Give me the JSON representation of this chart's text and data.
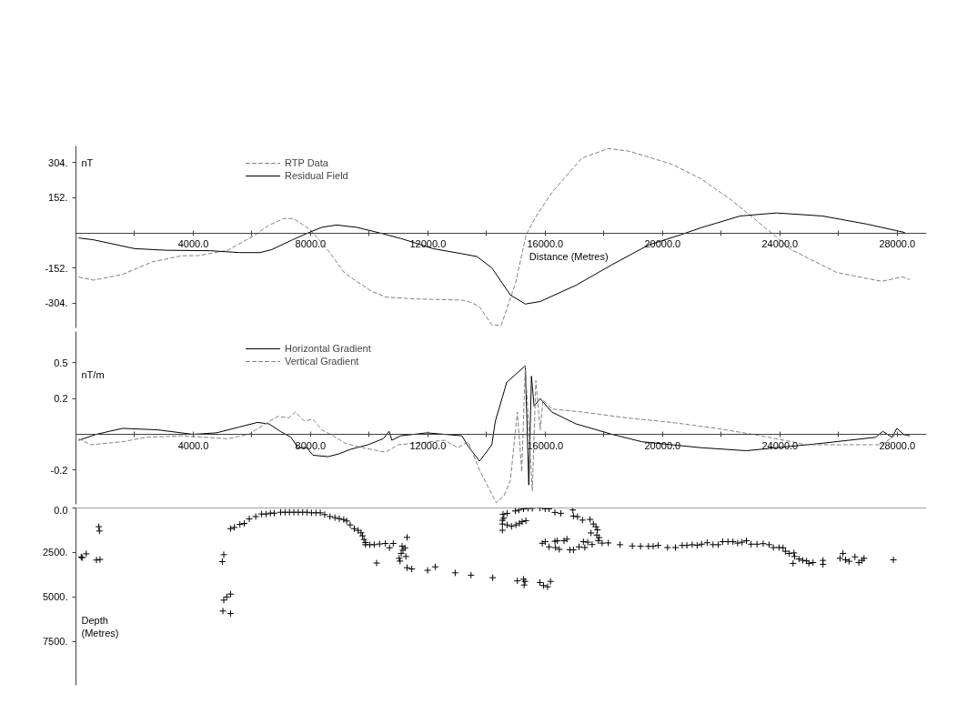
{
  "chart_data": [
    {
      "type": "line",
      "xlabel": "Distance (Metres)",
      "ylabel": "nT",
      "legend": "top",
      "xlim": [
        0,
        29000
      ],
      "ylim": [
        -410,
        375
      ],
      "xticks": [
        {
          "value": 2000,
          "label": null
        },
        {
          "value": 4000,
          "label": "4000.0"
        },
        {
          "value": 6000,
          "label": null
        },
        {
          "value": 8000,
          "label": "8000.0"
        },
        {
          "value": 10000,
          "label": null
        },
        {
          "value": 12000,
          "label": "12000.0"
        },
        {
          "value": 14000,
          "label": null
        },
        {
          "value": 16000,
          "label": "16000.0"
        },
        {
          "value": 18000,
          "label": null
        },
        {
          "value": 20000,
          "label": "20000.0"
        },
        {
          "value": 22000,
          "label": null
        },
        {
          "value": 24000,
          "label": "24000.0"
        },
        {
          "value": 26000,
          "label": null
        },
        {
          "value": 28000,
          "label": "28000.0"
        }
      ],
      "yticks": [
        {
          "value": 304,
          "label": "304."
        },
        {
          "value": 152,
          "label": "152."
        },
        {
          "value": -152,
          "label": "-152."
        },
        {
          "value": -304,
          "label": "-304."
        }
      ],
      "series": [
        {
          "name": "RTP Data",
          "color": "#808080",
          "line_style": "dashed",
          "x": [
            100,
            600,
            1590,
            2600,
            3590,
            4190,
            5180,
            6080,
            6580,
            7080,
            7420,
            7990,
            8590,
            9180,
            10080,
            10570,
            11570,
            13160,
            13470,
            13760,
            14180,
            14500,
            14990,
            15350,
            15680,
            16220,
            17250,
            18160,
            18880,
            20320,
            21330,
            22350,
            22980,
            23790,
            24380,
            25940,
            27470,
            28180,
            28420
          ],
          "values": [
            -191,
            -204,
            -179,
            -125,
            -99,
            -98,
            -75,
            -11,
            33,
            62,
            62,
            14,
            -75,
            -176,
            -252,
            -277,
            -285,
            -290,
            -300,
            -319,
            -397,
            -399,
            -216,
            -8,
            70,
            173,
            323,
            364,
            352,
            296,
            232,
            141,
            76,
            -8,
            -72,
            -171,
            -209,
            -190,
            -201
          ]
        },
        {
          "name": "Residual Field",
          "color": "#000000",
          "line_style": "solid",
          "x": [
            100,
            600,
            2000,
            3090,
            4580,
            5590,
            6280,
            6680,
            7380,
            7990,
            8380,
            8880,
            9570,
            10380,
            11070,
            12180,
            13160,
            13670,
            14180,
            14810,
            15320,
            15830,
            17050,
            18280,
            19510,
            20620,
            21330,
            22650,
            23880,
            25440,
            26960,
            28250
          ],
          "values": [
            -22,
            -30,
            -68,
            -75,
            -77,
            -85,
            -85,
            -72,
            -30,
            4,
            24,
            34,
            24,
            -1,
            -24,
            -68,
            -90,
            -102,
            -151,
            -268,
            -307,
            -296,
            -226,
            -137,
            -53,
            -8,
            23,
            73,
            86,
            73,
            38,
            2
          ]
        }
      ]
    },
    {
      "type": "line",
      "ylabel": "nT/m",
      "legend": "top",
      "xlim": [
        0,
        29000
      ],
      "ylim": [
        -0.47,
        0.69
      ],
      "xticks": [
        {
          "value": 2000,
          "label": null
        },
        {
          "value": 4000,
          "label": "4000.0"
        },
        {
          "value": 6000,
          "label": null
        },
        {
          "value": 8000,
          "label": "8000.0"
        },
        {
          "value": 10000,
          "label": null
        },
        {
          "value": 12000,
          "label": "12000.0"
        },
        {
          "value": 14000,
          "label": null
        },
        {
          "value": 16000,
          "label": "16000.0"
        },
        {
          "value": 18000,
          "label": null
        },
        {
          "value": 20000,
          "label": "20000.0"
        },
        {
          "value": 22000,
          "label": null
        },
        {
          "value": 24000,
          "label": "24000.0"
        },
        {
          "value": 26000,
          "label": null
        },
        {
          "value": 28000,
          "label": "28000.0"
        }
      ],
      "yticks": [
        {
          "value": 0.48,
          "label": "0.5"
        },
        {
          "value": 0.24,
          "label": "0.2"
        },
        {
          "value": -0.24,
          "label": "-0.2"
        }
      ],
      "series": [
        {
          "name": "Horizontal Gradient",
          "color": "#000000",
          "line_style": "solid",
          "x": [
            100,
            690,
            1590,
            2790,
            3990,
            4790,
            5590,
            6190,
            6580,
            6970,
            7330,
            7570,
            7870,
            8080,
            8590,
            8980,
            9370,
            9960,
            10470,
            10680,
            10770,
            11070,
            11970,
            12570,
            13160,
            13370,
            13760,
            14180,
            14300,
            14690,
            15320,
            15440,
            15530,
            15620,
            15830,
            16220,
            17050,
            18280,
            19300,
            21330,
            22860,
            23880,
            25440,
            27260,
            27510,
            27820,
            27990,
            28220,
            28420
          ],
          "values": [
            -0.04,
            0.0,
            0.04,
            0.03,
            0.0,
            0.01,
            0.05,
            0.08,
            0.07,
            0.02,
            -0.02,
            -0.09,
            -0.09,
            -0.14,
            -0.15,
            -0.13,
            -0.1,
            -0.07,
            -0.03,
            0.02,
            -0.04,
            -0.01,
            0.01,
            0.0,
            -0.01,
            -0.08,
            -0.18,
            -0.07,
            0.09,
            0.35,
            0.46,
            -0.34,
            0.39,
            0.19,
            0.24,
            0.15,
            0.07,
            0.0,
            -0.05,
            -0.09,
            -0.11,
            -0.09,
            -0.06,
            -0.02,
            0.02,
            -0.02,
            0.04,
            0.0,
            -0.01
          ]
        },
        {
          "name": "Vertical Gradient",
          "color": "#808080",
          "line_style": "dashed",
          "x": [
            100,
            500,
            1590,
            2390,
            3590,
            5180,
            5890,
            6370,
            6880,
            7240,
            7480,
            7780,
            8080,
            8380,
            8770,
            9180,
            9780,
            10560,
            10980,
            11580,
            12570,
            13020,
            13370,
            13760,
            14330,
            14600,
            14810,
            15050,
            15200,
            15320,
            15560,
            15680,
            15830,
            15920,
            16220,
            17250,
            18790,
            20320,
            21840,
            23370,
            24910,
            27470,
            27980,
            28380
          ],
          "values": [
            -0.03,
            -0.07,
            -0.05,
            -0.02,
            -0.01,
            -0.03,
            0.0,
            0.06,
            0.12,
            0.11,
            0.15,
            0.09,
            0.1,
            0.03,
            -0.01,
            -0.06,
            -0.09,
            -0.12,
            -0.07,
            -0.06,
            -0.04,
            -0.09,
            -0.05,
            -0.24,
            -0.46,
            -0.41,
            -0.31,
            0.15,
            -0.25,
            0.46,
            -0.38,
            0.36,
            0.03,
            0.23,
            0.17,
            0.15,
            0.11,
            0.08,
            0.04,
            -0.01,
            -0.07,
            -0.07,
            0.0,
            -0.01
          ]
        }
      ]
    },
    {
      "type": "scatter",
      "ylabel": "Depth (Metres)",
      "marker": "cross",
      "tick_labels": "y",
      "xlim": [
        0,
        29000
      ],
      "ylim": [
        9950,
        0
      ],
      "yticks": [
        {
          "value": 0,
          "label": "0.0"
        },
        {
          "value": 2500,
          "label": "2500."
        },
        {
          "value": 5000,
          "label": "5000."
        },
        {
          "value": 7500,
          "label": "7500."
        }
      ],
      "series": [
        {
          "color": "#000000",
          "x": [
            180,
            210,
            350,
            780,
            800,
            700,
            820,
            4990,
            5040,
            5040,
            5140,
            5270,
            5010,
            5270,
            5270,
            5400,
            5590,
            5740,
            5910,
            6130,
            6330,
            6480,
            6630,
            6760,
            6980,
            7130,
            7280,
            7430,
            7580,
            7730,
            7880,
            8030,
            8180,
            8330,
            8480,
            8660,
            8830,
            8980,
            9130,
            9230,
            9350,
            9490,
            9620,
            9720,
            9770,
            9820,
            9870,
            9870,
            10020,
            10170,
            10350,
            10550,
            10690,
            10820,
            10250,
            11290,
            11020,
            11050,
            11090,
            11120,
            11150,
            11220,
            11250,
            11290,
            11450,
            11990,
            12250,
            12930,
            13470,
            14210,
            15050,
            15260,
            15310,
            15280,
            15820,
            15940,
            16080,
            16180,
            14560,
            14700,
            14980,
            15100,
            15260,
            15410,
            15560,
            15820,
            16000,
            16130,
            16330,
            16530,
            16940,
            16960,
            17100,
            17270,
            17530,
            17640,
            17730,
            17780,
            17560,
            17760,
            17840,
            17810,
            17940,
            18150,
            18550,
            14540,
            14590,
            14540,
            14540,
            14700,
            14850,
            15000,
            15120,
            15210,
            15340,
            15900,
            16000,
            16130,
            16330,
            16410,
            16350,
            16480,
            16640,
            16740,
            16840,
            16960,
            17150,
            17350,
            17300,
            17450,
            17600,
            18970,
            19250,
            19520,
            19680,
            19850,
            20170,
            20440,
            20670,
            20830,
            21010,
            21180,
            21330,
            21520,
            21720,
            21900,
            22050,
            22230,
            22400,
            22560,
            22710,
            22860,
            23020,
            23220,
            23430,
            23630,
            23780,
            23970,
            24110,
            24190,
            24320,
            24480,
            24500,
            24450,
            24650,
            24780,
            24910,
            24990,
            25130,
            25470,
            25470,
            26050,
            26150,
            26240,
            26360,
            26560,
            26690,
            26800,
            26870,
            27870
          ],
          "values": [
            2750,
            2790,
            2570,
            1050,
            1290,
            2920,
            2890,
            3010,
            2620,
            5170,
            4990,
            4830,
            5780,
            5920,
            1160,
            1090,
            920,
            870,
            610,
            480,
            340,
            340,
            290,
            290,
            240,
            240,
            240,
            240,
            240,
            240,
            240,
            270,
            270,
            270,
            370,
            480,
            540,
            600,
            650,
            730,
            950,
            1160,
            1260,
            1390,
            1560,
            1770,
            1940,
            2060,
            2060,
            2060,
            2020,
            1990,
            2230,
            1990,
            3090,
            1650,
            2820,
            2980,
            2550,
            2140,
            2360,
            2240,
            2720,
            3350,
            3420,
            3500,
            3300,
            3640,
            3770,
            3910,
            4090,
            4000,
            4120,
            4320,
            4180,
            4350,
            4420,
            4120,
            350,
            300,
            170,
            120,
            50,
            20,
            20,
            0,
            50,
            50,
            250,
            300,
            110,
            450,
            490,
            680,
            640,
            900,
            1050,
            1230,
            1400,
            1520,
            1660,
            1830,
            1970,
            1960,
            2060,
            690,
            570,
            900,
            1250,
            950,
            1030,
            950,
            860,
            770,
            710,
            1980,
            1890,
            2180,
            1870,
            1840,
            2220,
            2320,
            1840,
            1750,
            2350,
            2350,
            2180,
            2220,
            1890,
            1920,
            2050,
            2130,
            2150,
            2150,
            2150,
            2100,
            2220,
            2220,
            2100,
            2100,
            2060,
            2100,
            2030,
            1950,
            2060,
            2060,
            1890,
            1890,
            1890,
            1970,
            1920,
            1840,
            2030,
            2030,
            2000,
            2060,
            2220,
            2220,
            2230,
            2430,
            2550,
            2520,
            2720,
            3110,
            2860,
            2940,
            2970,
            3110,
            3060,
            2940,
            3160,
            2820,
            2550,
            2910,
            2990,
            2740,
            3060,
            2940,
            2820,
            2910
          ]
        }
      ]
    }
  ]
}
